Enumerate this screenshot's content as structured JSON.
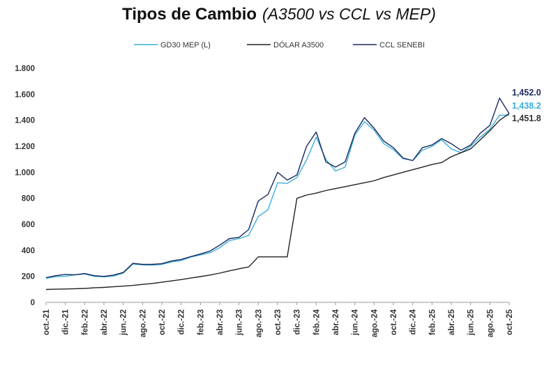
{
  "chart_data": {
    "type": "line",
    "title": "Tipos de Cambio",
    "subtitle": "(A3500 vs CCL vs MEP)",
    "xlabel": "",
    "ylabel": "",
    "legend_position": "top-center",
    "grid": false,
    "ylim": [
      0,
      1800
    ],
    "y_ticks": [
      0,
      200,
      400,
      600,
      800,
      1000,
      1200,
      1400,
      1600,
      1800
    ],
    "y_tick_labels": [
      "0",
      "200",
      "400",
      "600",
      "800",
      "1.000",
      "1.200",
      "1.400",
      "1.600",
      "1.800"
    ],
    "x_start_month": "2021-10",
    "x_tick_labels": [
      "oct.-21",
      "dic.-21",
      "feb.-22",
      "abr.-22",
      "jun.-22",
      "ago.-22",
      "oct.-22",
      "dic.-22",
      "feb.-23",
      "abr.-23",
      "jun.-23",
      "ago.-23",
      "oct.-23",
      "dic.-23",
      "feb.-24",
      "abr.-24",
      "jun.-24",
      "ago.-24",
      "oct.-24",
      "dic.-24",
      "feb.-25",
      "abr.-25",
      "jun.-25",
      "ago.-25",
      "oct.-25"
    ],
    "series": [
      {
        "name": "GD30 MEP (L)",
        "color": "#3aaed8",
        "end_label": "1,438.2",
        "points": [
          [
            "2021-10",
            185
          ],
          [
            "2021-11",
            198
          ],
          [
            "2021-12",
            200
          ],
          [
            "2022-01",
            212
          ],
          [
            "2022-02",
            218
          ],
          [
            "2022-03",
            200
          ],
          [
            "2022-04",
            196
          ],
          [
            "2022-05",
            202
          ],
          [
            "2022-06",
            225
          ],
          [
            "2022-07",
            295
          ],
          [
            "2022-08",
            288
          ],
          [
            "2022-09",
            286
          ],
          [
            "2022-10",
            292
          ],
          [
            "2022-11",
            310
          ],
          [
            "2022-12",
            322
          ],
          [
            "2023-01",
            348
          ],
          [
            "2023-02",
            365
          ],
          [
            "2023-03",
            382
          ],
          [
            "2023-04",
            420
          ],
          [
            "2023-05",
            475
          ],
          [
            "2023-06",
            490
          ],
          [
            "2023-07",
            515
          ],
          [
            "2023-08",
            660
          ],
          [
            "2023-09",
            712
          ],
          [
            "2023-10",
            920
          ],
          [
            "2023-11",
            915
          ],
          [
            "2023-12",
            960
          ],
          [
            "2024-01",
            1095
          ],
          [
            "2024-02",
            1270
          ],
          [
            "2024-03",
            1100
          ],
          [
            "2024-04",
            1010
          ],
          [
            "2024-05",
            1040
          ],
          [
            "2024-06",
            1285
          ],
          [
            "2024-07",
            1390
          ],
          [
            "2024-08",
            1325
          ],
          [
            "2024-09",
            1220
          ],
          [
            "2024-10",
            1175
          ],
          [
            "2024-11",
            1105
          ],
          [
            "2024-12",
            1090
          ],
          [
            "2025-01",
            1170
          ],
          [
            "2025-02",
            1200
          ],
          [
            "2025-03",
            1250
          ],
          [
            "2025-04",
            1180
          ],
          [
            "2025-05",
            1150
          ],
          [
            "2025-06",
            1200
          ],
          [
            "2025-07",
            1270
          ],
          [
            "2025-08",
            1330
          ],
          [
            "2025-09",
            1440
          ],
          [
            "2025-10",
            1438.2
          ]
        ]
      },
      {
        "name": "DÓLAR A3500",
        "color": "#222222",
        "end_label": "1,451.8",
        "points": [
          [
            "2021-10",
            99
          ],
          [
            "2021-11",
            101
          ],
          [
            "2021-12",
            103
          ],
          [
            "2022-01",
            105
          ],
          [
            "2022-02",
            107
          ],
          [
            "2022-03",
            112
          ],
          [
            "2022-04",
            115
          ],
          [
            "2022-05",
            120
          ],
          [
            "2022-06",
            125
          ],
          [
            "2022-07",
            130
          ],
          [
            "2022-08",
            138
          ],
          [
            "2022-09",
            145
          ],
          [
            "2022-10",
            155
          ],
          [
            "2022-11",
            165
          ],
          [
            "2022-12",
            175
          ],
          [
            "2023-01",
            187
          ],
          [
            "2023-02",
            198
          ],
          [
            "2023-03",
            210
          ],
          [
            "2023-04",
            225
          ],
          [
            "2023-05",
            242
          ],
          [
            "2023-06",
            258
          ],
          [
            "2023-07",
            272
          ],
          [
            "2023-08",
            350
          ],
          [
            "2023-09",
            350
          ],
          [
            "2023-10",
            350
          ],
          [
            "2023-11",
            350
          ],
          [
            "2023-12",
            800
          ],
          [
            "2024-01",
            825
          ],
          [
            "2024-02",
            840
          ],
          [
            "2024-03",
            860
          ],
          [
            "2024-04",
            875
          ],
          [
            "2024-05",
            890
          ],
          [
            "2024-06",
            905
          ],
          [
            "2024-07",
            920
          ],
          [
            "2024-08",
            935
          ],
          [
            "2024-09",
            960
          ],
          [
            "2024-10",
            980
          ],
          [
            "2024-11",
            1000
          ],
          [
            "2024-12",
            1020
          ],
          [
            "2025-01",
            1040
          ],
          [
            "2025-02",
            1060
          ],
          [
            "2025-03",
            1075
          ],
          [
            "2025-04",
            1120
          ],
          [
            "2025-05",
            1150
          ],
          [
            "2025-06",
            1180
          ],
          [
            "2025-07",
            1250
          ],
          [
            "2025-08",
            1320
          ],
          [
            "2025-09",
            1400
          ],
          [
            "2025-10",
            1451.8
          ]
        ]
      },
      {
        "name": "CCL SENEBI",
        "color": "#1a2a5e",
        "end_label": "1,452.0",
        "points": [
          [
            "2021-10",
            190
          ],
          [
            "2021-11",
            205
          ],
          [
            "2021-12",
            215
          ],
          [
            "2022-01",
            212
          ],
          [
            "2022-02",
            222
          ],
          [
            "2022-03",
            205
          ],
          [
            "2022-04",
            200
          ],
          [
            "2022-05",
            210
          ],
          [
            "2022-06",
            230
          ],
          [
            "2022-07",
            300
          ],
          [
            "2022-08",
            292
          ],
          [
            "2022-09",
            292
          ],
          [
            "2022-10",
            298
          ],
          [
            "2022-11",
            318
          ],
          [
            "2022-12",
            330
          ],
          [
            "2023-01",
            352
          ],
          [
            "2023-02",
            372
          ],
          [
            "2023-03",
            395
          ],
          [
            "2023-04",
            440
          ],
          [
            "2023-05",
            490
          ],
          [
            "2023-06",
            500
          ],
          [
            "2023-07",
            560
          ],
          [
            "2023-08",
            780
          ],
          [
            "2023-09",
            830
          ],
          [
            "2023-10",
            1000
          ],
          [
            "2023-11",
            940
          ],
          [
            "2023-12",
            980
          ],
          [
            "2024-01",
            1200
          ],
          [
            "2024-02",
            1310
          ],
          [
            "2024-03",
            1080
          ],
          [
            "2024-04",
            1040
          ],
          [
            "2024-05",
            1080
          ],
          [
            "2024-06",
            1300
          ],
          [
            "2024-07",
            1420
          ],
          [
            "2024-08",
            1340
          ],
          [
            "2024-09",
            1240
          ],
          [
            "2024-10",
            1190
          ],
          [
            "2024-11",
            1110
          ],
          [
            "2024-12",
            1090
          ],
          [
            "2025-01",
            1190
          ],
          [
            "2025-02",
            1210
          ],
          [
            "2025-03",
            1260
          ],
          [
            "2025-04",
            1220
          ],
          [
            "2025-05",
            1170
          ],
          [
            "2025-06",
            1210
          ],
          [
            "2025-07",
            1300
          ],
          [
            "2025-08",
            1360
          ],
          [
            "2025-09",
            1570
          ],
          [
            "2025-10",
            1452.0
          ]
        ]
      }
    ]
  }
}
